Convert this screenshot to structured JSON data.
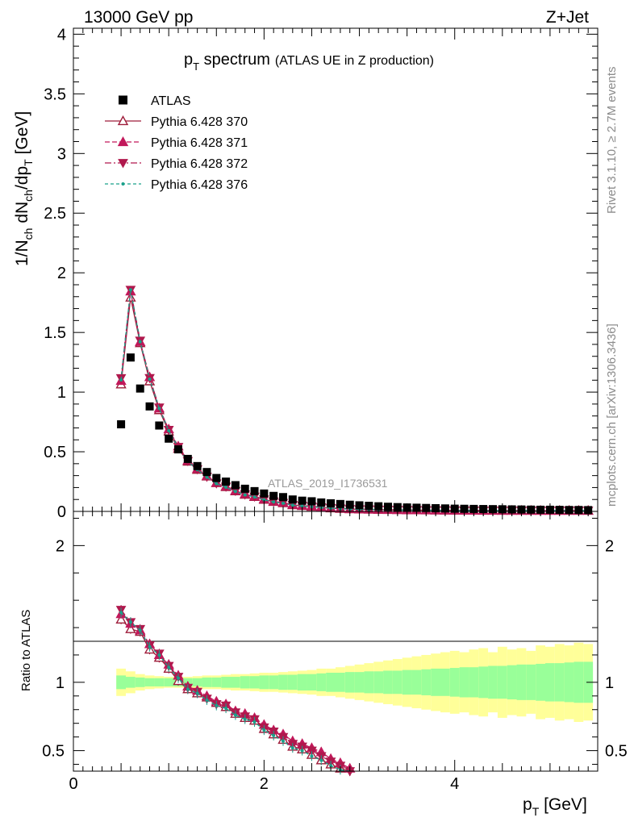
{
  "header": {
    "left": "13000 GeV pp",
    "right": "Z+Jet"
  },
  "side_labels": {
    "rivet": "Rivet 3.1.10, ≥ 2.7M events",
    "mcplots": "mcplots.cern.ch [arXiv:1306.3436]"
  },
  "chart_data": {
    "type": "scatter",
    "title": {
      "main": "p",
      "main_sub": "T",
      "main_rest": " spectrum",
      "note": "(ATLAS UE in Z production)"
    },
    "analysis_id": "ATLAS_2019_I1736531",
    "xlabel": {
      "main": "p",
      "sub": "T",
      "rest": " [GeV]"
    },
    "ylabel": "1/N_ch dN_ch/dp_T [GeV]",
    "ratio_ylabel": "Ratio to ATLAS",
    "xlim": [
      0,
      5.5
    ],
    "ylim": [
      0,
      4.05
    ],
    "ratio_ylim": [
      0.35,
      2.25
    ],
    "x_ticks": [
      "0",
      "2",
      "4"
    ],
    "y_ticks": [
      "0",
      "0.5",
      "1",
      "1.5",
      "2",
      "2.5",
      "3",
      "3.5",
      "4"
    ],
    "ratio_ticks": [
      "0.5",
      "1",
      "2"
    ],
    "legend_position": "top-left",
    "x": [
      0.5,
      0.6,
      0.7,
      0.8,
      0.9,
      1.0,
      1.1,
      1.2,
      1.3,
      1.4,
      1.5,
      1.6,
      1.7,
      1.8,
      1.9,
      2.0,
      2.1,
      2.2,
      2.3,
      2.4,
      2.5,
      2.6,
      2.7,
      2.8,
      2.9,
      3.0,
      3.1,
      3.2,
      3.3,
      3.4,
      3.5,
      3.6,
      3.7,
      3.8,
      3.9,
      4.0,
      4.1,
      4.2,
      4.3,
      4.4,
      4.5,
      4.6,
      4.7,
      4.8,
      4.9,
      5.0,
      5.1,
      5.2,
      5.3,
      5.4
    ],
    "series": [
      {
        "name": "ATLAS",
        "color": "#000000",
        "marker": "square",
        "values": [
          0.73,
          1.29,
          1.03,
          0.88,
          0.72,
          0.61,
          0.52,
          0.44,
          0.38,
          0.33,
          0.28,
          0.25,
          0.22,
          0.19,
          0.17,
          0.15,
          0.13,
          0.12,
          0.1,
          0.09,
          0.085,
          0.075,
          0.068,
          0.062,
          0.056,
          0.051,
          0.047,
          0.043,
          0.039,
          0.036,
          0.033,
          0.031,
          0.029,
          0.027,
          0.025,
          0.023,
          0.022,
          0.021,
          0.02,
          0.019,
          0.018,
          0.017,
          0.016,
          0.015,
          0.014,
          0.014,
          0.013,
          0.012,
          0.012,
          0.011
        ],
        "band_inner": [
          0.05,
          0.04,
          0.035,
          0.03,
          0.03,
          0.03,
          0.03,
          0.03,
          0.03,
          0.035,
          0.035,
          0.04,
          0.04,
          0.045,
          0.045,
          0.05,
          0.05,
          0.055,
          0.055,
          0.06,
          0.06,
          0.065,
          0.07,
          0.07,
          0.075,
          0.075,
          0.08,
          0.08,
          0.085,
          0.085,
          0.09,
          0.09,
          0.095,
          0.1,
          0.1,
          0.105,
          0.11,
          0.11,
          0.115,
          0.12,
          0.12,
          0.125,
          0.13,
          0.13,
          0.135,
          0.14,
          0.14,
          0.145,
          0.15,
          0.15
        ],
        "band_outer": [
          0.1,
          0.08,
          0.06,
          0.05,
          0.045,
          0.04,
          0.04,
          0.04,
          0.045,
          0.05,
          0.05,
          0.055,
          0.06,
          0.06,
          0.065,
          0.07,
          0.07,
          0.075,
          0.08,
          0.085,
          0.09,
          0.1,
          0.1,
          0.11,
          0.12,
          0.13,
          0.14,
          0.15,
          0.16,
          0.17,
          0.18,
          0.19,
          0.2,
          0.21,
          0.22,
          0.23,
          0.22,
          0.24,
          0.25,
          0.22,
          0.26,
          0.24,
          0.25,
          0.23,
          0.27,
          0.26,
          0.28,
          0.27,
          0.29,
          0.28
        ]
      },
      {
        "name": "Pythia 6.428 370",
        "color": "#9e1c3a",
        "marker": "triangle-up-open",
        "dash": "",
        "ratio": [
          1.46,
          1.39,
          1.37,
          1.24,
          1.18,
          1.1,
          1.01,
          0.95,
          0.92,
          0.89,
          0.85,
          0.82,
          0.77,
          0.74,
          0.72,
          0.66,
          0.62,
          0.58,
          0.53,
          0.51,
          0.47,
          0.43,
          0.4,
          0.37,
          0.34
        ]
      },
      {
        "name": "Pythia 6.428 371",
        "color": "#c2185b",
        "marker": "triangle-up",
        "dash": "6,3",
        "ratio": [
          1.5,
          1.43,
          1.38,
          1.28,
          1.2,
          1.13,
          1.05,
          0.97,
          0.94,
          0.9,
          0.86,
          0.84,
          0.79,
          0.77,
          0.74,
          0.69,
          0.65,
          0.62,
          0.57,
          0.55,
          0.52,
          0.49,
          0.44,
          0.41,
          0.37
        ]
      },
      {
        "name": "Pythia 6.428 372",
        "color": "#b0184d",
        "marker": "triangle-down",
        "dash": "8,3,2,3",
        "ratio": [
          1.53,
          1.44,
          1.39,
          1.27,
          1.21,
          1.12,
          1.04,
          0.96,
          0.93,
          0.88,
          0.84,
          0.83,
          0.78,
          0.75,
          0.73,
          0.67,
          0.64,
          0.6,
          0.55,
          0.53,
          0.5,
          0.46,
          0.42,
          0.39,
          0.35
        ]
      },
      {
        "name": "Pythia 6.428 376",
        "color": "#1aa08a",
        "marker": "dot",
        "dash": "4,3",
        "ratio": [
          1.51,
          1.44,
          1.38,
          1.26,
          1.2,
          1.11,
          1.03,
          0.95,
          0.92,
          0.87,
          0.83,
          0.81,
          0.76,
          0.73,
          0.71,
          0.65,
          0.61,
          0.57,
          0.52,
          0.5,
          0.46,
          0.43,
          0.39,
          0.36,
          0.33
        ]
      }
    ]
  }
}
